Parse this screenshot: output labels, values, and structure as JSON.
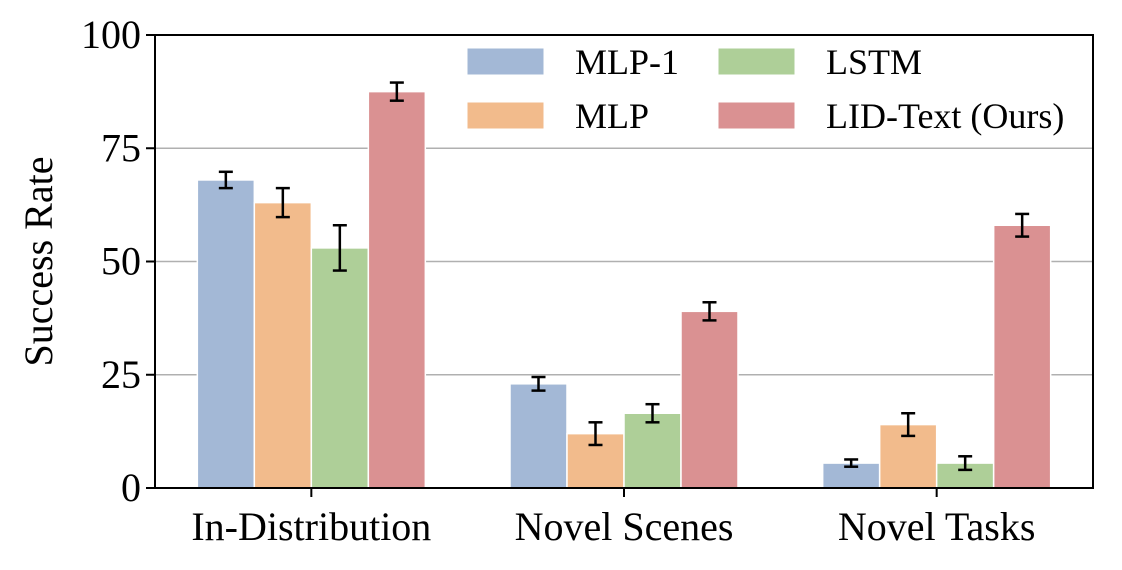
{
  "chart_data": {
    "type": "bar",
    "title": "",
    "xlabel": "",
    "ylabel": "Success Rate",
    "ylim": [
      0,
      100
    ],
    "yticks": [
      0,
      25,
      50,
      75,
      100
    ],
    "grid": "horizontal",
    "legend_position": "top-right",
    "categories": [
      "In-Distribution",
      "Novel Scenes",
      "Novel Tasks"
    ],
    "series": [
      {
        "name": "MLP-1",
        "color": "#a3b8d6",
        "values": [
          68,
          23,
          5.5
        ],
        "errors": [
          1.8,
          1.5,
          0.8
        ]
      },
      {
        "name": "MLP",
        "color": "#f2bb8c",
        "values": [
          63,
          12,
          14
        ],
        "errors": [
          3.2,
          2.5,
          2.5
        ]
      },
      {
        "name": "LSTM",
        "color": "#aecf98",
        "values": [
          53,
          16.5,
          5.5
        ],
        "errors": [
          5.0,
          2.0,
          1.5
        ]
      },
      {
        "name": "LID-Text (Ours)",
        "color": "#da9192",
        "values": [
          87.5,
          39,
          58
        ],
        "errors": [
          2.0,
          2.0,
          2.5
        ]
      }
    ]
  }
}
